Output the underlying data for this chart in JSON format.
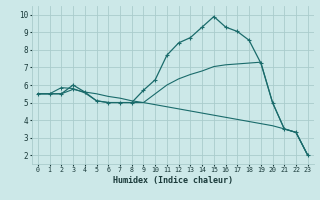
{
  "xlabel": "Humidex (Indice chaleur)",
  "bg_color": "#cce8e8",
  "grid_color": "#aacccc",
  "line_color": "#1a6b6b",
  "xlim": [
    -0.5,
    23.5
  ],
  "ylim": [
    1.5,
    10.5
  ],
  "xticks": [
    0,
    1,
    2,
    3,
    4,
    5,
    6,
    7,
    8,
    9,
    10,
    11,
    12,
    13,
    14,
    15,
    16,
    17,
    18,
    19,
    20,
    21,
    22,
    23
  ],
  "yticks": [
    2,
    3,
    4,
    5,
    6,
    7,
    8,
    9,
    10
  ],
  "line1_x": [
    0,
    1,
    2,
    3,
    4,
    5,
    6,
    7,
    8,
    9,
    10,
    11,
    12,
    13,
    14,
    15,
    16,
    17,
    18,
    19,
    20,
    21,
    22,
    23
  ],
  "line1_y": [
    5.5,
    5.5,
    5.5,
    6.0,
    5.6,
    5.1,
    5.0,
    5.0,
    5.0,
    5.7,
    6.3,
    7.7,
    8.4,
    8.7,
    9.3,
    9.9,
    9.3,
    9.05,
    8.55,
    7.25,
    5.0,
    3.5,
    3.3,
    2.0
  ],
  "line2_x": [
    0,
    1,
    2,
    3,
    4,
    5,
    6,
    7,
    8,
    9,
    10,
    11,
    12,
    13,
    14,
    15,
    16,
    17,
    18,
    19,
    20,
    21,
    22,
    23
  ],
  "line2_y": [
    5.5,
    5.5,
    5.85,
    5.8,
    5.55,
    5.1,
    5.0,
    5.0,
    5.0,
    5.0,
    5.5,
    6.0,
    6.35,
    6.6,
    6.8,
    7.05,
    7.15,
    7.2,
    7.25,
    7.3,
    5.0,
    3.5,
    3.3,
    2.0
  ],
  "line2_markers": [
    2,
    3
  ],
  "line3_x": [
    0,
    1,
    2,
    3,
    4,
    5,
    6,
    7,
    8,
    9,
    10,
    11,
    12,
    13,
    14,
    15,
    16,
    17,
    18,
    19,
    20,
    21,
    22,
    23
  ],
  "line3_y": [
    5.5,
    5.5,
    5.5,
    5.75,
    5.6,
    5.5,
    5.35,
    5.25,
    5.1,
    5.0,
    4.88,
    4.76,
    4.64,
    4.52,
    4.4,
    4.28,
    4.16,
    4.04,
    3.92,
    3.8,
    3.68,
    3.5,
    3.3,
    2.0
  ]
}
